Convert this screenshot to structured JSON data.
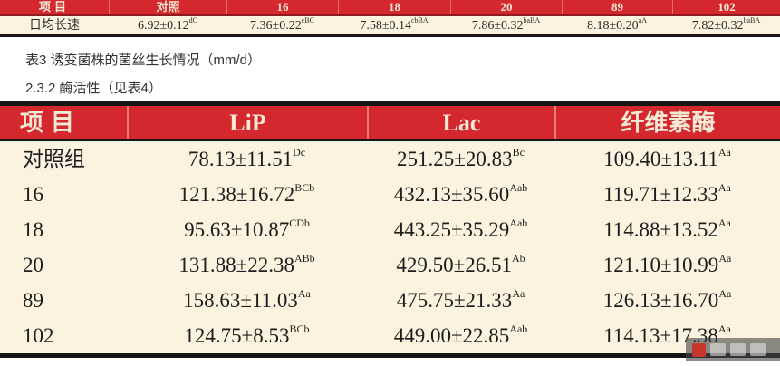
{
  "colors": {
    "header_red": "#d5282e",
    "table_bg": "#fbf3df",
    "border_black": "#151515",
    "header_text": "#f3e9d4"
  },
  "growth_table": {
    "headers": [
      "项目",
      "对照",
      "16",
      "18",
      "20",
      "89",
      "102"
    ],
    "row_label": "日均长速",
    "values": [
      {
        "main": "6.92±0.12",
        "sup": "dC"
      },
      {
        "main": "7.36±0.22",
        "sup": "cBC"
      },
      {
        "main": "7.58±0.14",
        "sup": "cbBA"
      },
      {
        "main": "7.86±0.32",
        "sup": "baBA"
      },
      {
        "main": "8.18±0.20",
        "sup": "aA"
      },
      {
        "main": "7.82±0.32",
        "sup": "baBA"
      }
    ]
  },
  "captions": {
    "table3_caption": "表3 诱变菌株的菌丝生长情况（mm/d）",
    "section_heading": "2.3.2 酶活性（见表4）"
  },
  "enzyme_table": {
    "headers": [
      "项目",
      "LiP",
      "Lac",
      "纤维素酶"
    ],
    "rows": [
      {
        "label": "对照组",
        "lip": {
          "main": "78.13±11.51",
          "sup": "Dc"
        },
        "lac": {
          "main": "251.25±20.83",
          "sup": "Bc"
        },
        "cel": {
          "main": "109.40±13.11",
          "sup": "Aa"
        }
      },
      {
        "label": "16",
        "lip": {
          "main": "121.38±16.72",
          "sup": "BCb"
        },
        "lac": {
          "main": "432.13±35.60",
          "sup": "Aab"
        },
        "cel": {
          "main": "119.71±12.33",
          "sup": "Aa"
        }
      },
      {
        "label": "18",
        "lip": {
          "main": "95.63±10.87",
          "sup": "CDb"
        },
        "lac": {
          "main": "443.25±35.29",
          "sup": "Aab"
        },
        "cel": {
          "main": "114.88±13.52",
          "sup": "Aa"
        }
      },
      {
        "label": "20",
        "lip": {
          "main": "131.88±22.38",
          "sup": "ABb"
        },
        "lac": {
          "main": "429.50±26.51",
          "sup": "Ab"
        },
        "cel": {
          "main": "121.10±10.99",
          "sup": "Aa"
        }
      },
      {
        "label": "89",
        "lip": {
          "main": "158.63±11.03",
          "sup": "Aa"
        },
        "lac": {
          "main": "475.75±21.33",
          "sup": "Aa"
        },
        "cel": {
          "main": "126.13±16.70",
          "sup": "Aa"
        }
      },
      {
        "label": "102",
        "lip": {
          "main": "124.75±8.53",
          "sup": "BCb"
        },
        "lac": {
          "main": "449.00±22.85",
          "sup": "Aab"
        },
        "cel": {
          "main": "114.13±17.38",
          "sup": "Aa"
        }
      }
    ]
  }
}
